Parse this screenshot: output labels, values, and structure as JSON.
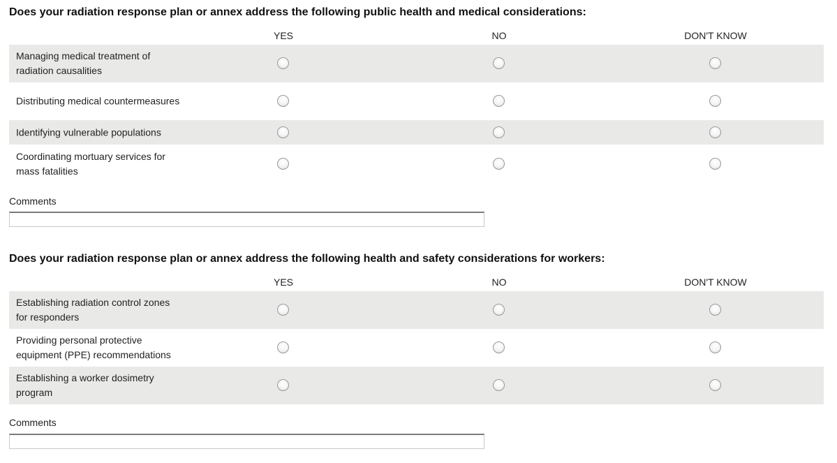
{
  "columns": [
    "YES",
    "NO",
    "DON'T KNOW"
  ],
  "sections": [
    {
      "title": "Does your radiation response plan or annex address the following public health and medical considerations:",
      "rows": [
        {
          "label": "Managing medical treatment of radiation causalities",
          "selected": null
        },
        {
          "label": "Distributing medical countermeasures",
          "selected": null
        },
        {
          "label": "Identifying vulnerable populations",
          "selected": null
        },
        {
          "label": "Coordinating mortuary services for mass fatalities",
          "selected": null
        }
      ],
      "comments_label": "Comments",
      "comments_value": ""
    },
    {
      "title": "Does your radiation response plan or annex address the following health and safety considerations for workers:",
      "rows": [
        {
          "label": "Establishing radiation control zones for responders",
          "selected": null
        },
        {
          "label": "Providing personal protective equipment (PPE) recommendations",
          "selected": null
        },
        {
          "label": "Establishing a worker dosimetry program",
          "selected": null
        }
      ],
      "comments_label": "Comments",
      "comments_value": ""
    }
  ],
  "colors": {
    "row_shade": "#e9e9e8"
  }
}
